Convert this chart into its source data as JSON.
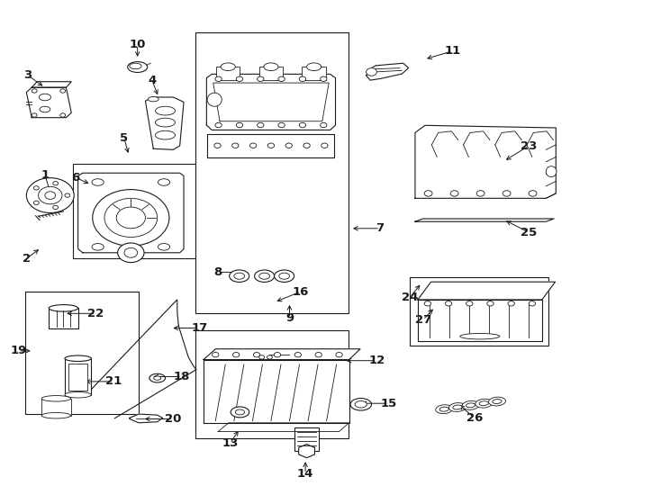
{
  "bg_color": "#ffffff",
  "line_color": "#1a1a1a",
  "figsize": [
    7.34,
    5.4
  ],
  "dpi": 100,
  "label_positions": {
    "1": [
      0.078,
      0.595,
      0.068,
      0.64
    ],
    "2": [
      0.062,
      0.49,
      0.04,
      0.468
    ],
    "3": [
      0.068,
      0.82,
      0.042,
      0.845
    ],
    "4": [
      0.24,
      0.8,
      0.23,
      0.835
    ],
    "5": [
      0.195,
      0.68,
      0.188,
      0.715
    ],
    "6": [
      0.138,
      0.62,
      0.114,
      0.635
    ],
    "7": [
      0.53,
      0.53,
      0.575,
      0.53
    ],
    "8": [
      0.368,
      0.44,
      0.33,
      0.44
    ],
    "9": [
      0.438,
      0.378,
      0.438,
      0.345
    ],
    "10": [
      0.208,
      0.878,
      0.208,
      0.908
    ],
    "11": [
      0.642,
      0.878,
      0.685,
      0.895
    ],
    "12": [
      0.52,
      0.258,
      0.57,
      0.258
    ],
    "13": [
      0.363,
      0.118,
      0.348,
      0.088
    ],
    "14": [
      0.462,
      0.055,
      0.462,
      0.025
    ],
    "15": [
      0.543,
      0.17,
      0.588,
      0.17
    ],
    "16": [
      0.415,
      0.378,
      0.455,
      0.4
    ],
    "17": [
      0.258,
      0.325,
      0.302,
      0.325
    ],
    "18": [
      0.228,
      0.225,
      0.275,
      0.225
    ],
    "19": [
      0.05,
      0.278,
      0.028,
      0.278
    ],
    "20": [
      0.215,
      0.138,
      0.262,
      0.138
    ],
    "21": [
      0.125,
      0.215,
      0.172,
      0.215
    ],
    "22": [
      0.097,
      0.355,
      0.145,
      0.355
    ],
    "23": [
      0.762,
      0.668,
      0.8,
      0.7
    ],
    "24": [
      0.638,
      0.418,
      0.62,
      0.388
    ],
    "25": [
      0.762,
      0.548,
      0.8,
      0.522
    ],
    "26": [
      0.692,
      0.17,
      0.718,
      0.14
    ],
    "27": [
      0.658,
      0.368,
      0.64,
      0.342
    ]
  }
}
